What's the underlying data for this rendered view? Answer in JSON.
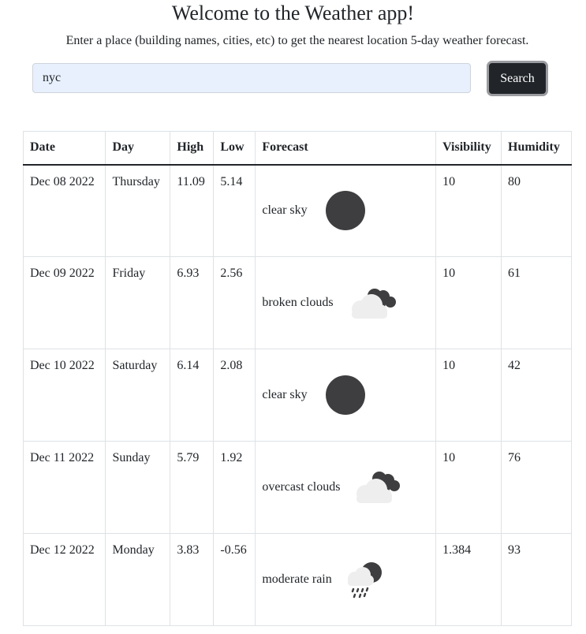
{
  "header": {
    "title": "Welcome to the Weather app!",
    "subtitle": "Enter a place (building names, cities, etc) to get the nearest location 5-day weather forecast."
  },
  "search": {
    "value": "nyc",
    "button_label": "Search"
  },
  "table": {
    "columns": [
      "Date",
      "Day",
      "High",
      "Low",
      "Forecast",
      "Visibility",
      "Humidity"
    ],
    "rows": [
      {
        "date": "Dec 08 2022",
        "day": "Thursday",
        "high": "11.09",
        "low": "5.14",
        "forecast": "clear sky",
        "icon": "clear-sky-icon",
        "visibility": "10",
        "humidity": "80"
      },
      {
        "date": "Dec 09 2022",
        "day": "Friday",
        "high": "6.93",
        "low": "2.56",
        "forecast": "broken clouds",
        "icon": "broken-clouds-icon",
        "visibility": "10",
        "humidity": "61"
      },
      {
        "date": "Dec 10 2022",
        "day": "Saturday",
        "high": "6.14",
        "low": "2.08",
        "forecast": "clear sky",
        "icon": "clear-sky-icon",
        "visibility": "10",
        "humidity": "42"
      },
      {
        "date": "Dec 11 2022",
        "day": "Sunday",
        "high": "5.79",
        "low": "1.92",
        "forecast": "overcast clouds",
        "icon": "overcast-clouds-icon",
        "visibility": "10",
        "humidity": "76"
      },
      {
        "date": "Dec 12 2022",
        "day": "Monday",
        "high": "3.83",
        "low": "-0.56",
        "forecast": "moderate rain",
        "icon": "moderate-rain-icon",
        "visibility": "1.384",
        "humidity": "93"
      }
    ]
  },
  "colors": {
    "dark": "#212529",
    "input_bg": "#e8f0fe",
    "icon_dark": "#3e3e40",
    "icon_light": "#eeeeee"
  }
}
